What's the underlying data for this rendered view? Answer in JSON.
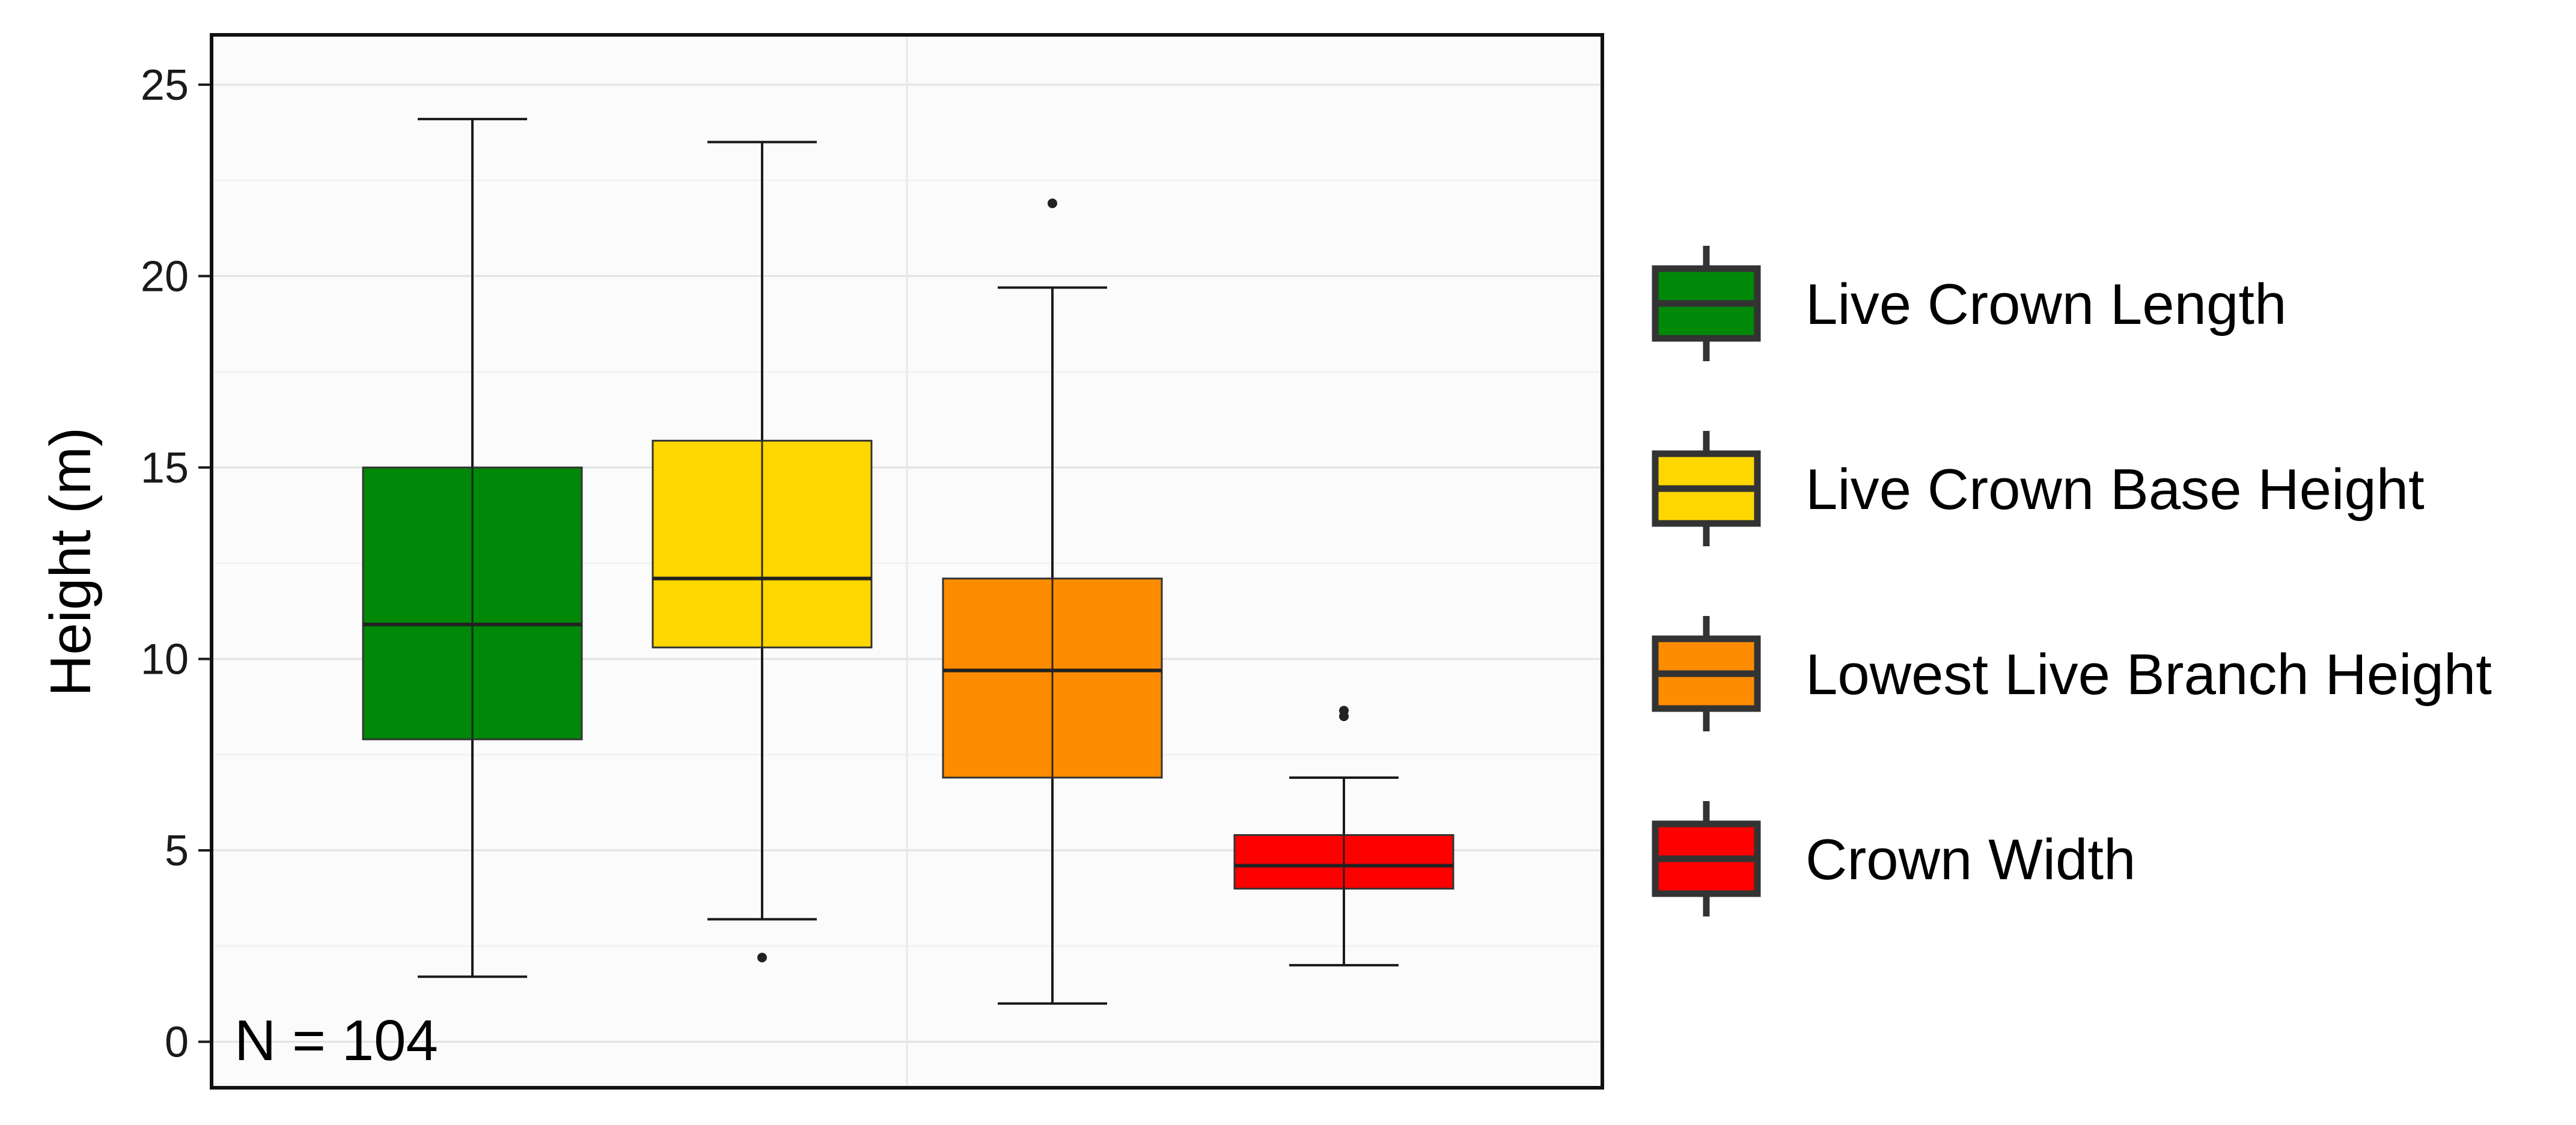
{
  "chart_data": {
    "type": "boxplot",
    "title": "",
    "xlabel": "",
    "ylabel": "Height (m)",
    "ylim": [
      -1.2,
      26.3
    ],
    "yticks": [
      0,
      5,
      10,
      15,
      20,
      25
    ],
    "grid": true,
    "legend_position": "right",
    "annotation": "N = 104",
    "series": [
      {
        "name": "Live Crown Length",
        "color": "#008808",
        "whisker_low": 1.7,
        "q1": 7.9,
        "median": 10.9,
        "q3": 15.0,
        "whisker_high": 24.1,
        "outliers": []
      },
      {
        "name": "Live Crown Base Height",
        "color": "#FFD700",
        "whisker_low": 3.2,
        "q1": 10.3,
        "median": 12.1,
        "q3": 15.7,
        "whisker_high": 23.5,
        "outliers": [
          2.2
        ]
      },
      {
        "name": "Lowest Live Branch Height",
        "color": "#FF8C00",
        "whisker_low": 1.0,
        "q1": 6.9,
        "median": 9.7,
        "q3": 12.1,
        "whisker_high": 19.7,
        "outliers": [
          21.9
        ]
      },
      {
        "name": "Crown Width",
        "color": "#FF0000",
        "whisker_low": 2.0,
        "q1": 4.0,
        "median": 4.6,
        "q3": 5.4,
        "whisker_high": 6.9,
        "outliers": [
          8.5,
          8.65
        ]
      }
    ]
  }
}
